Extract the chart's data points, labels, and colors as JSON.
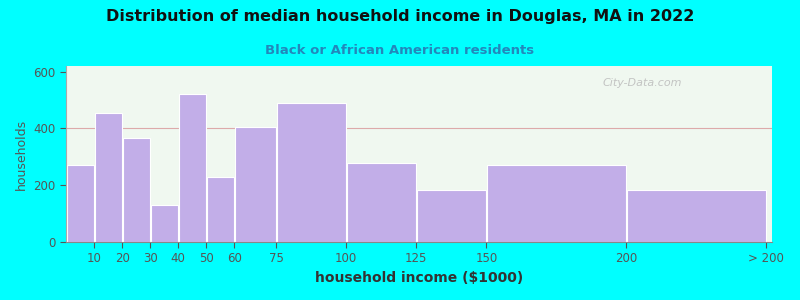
{
  "title": "Distribution of median household income in Douglas, MA in 2022",
  "subtitle": "Black or African American residents",
  "xlabel": "household income ($1000)",
  "ylabel": "households",
  "bar_color": "#c2aee8",
  "background_color": "#00ffff",
  "plot_bg_color": "#f0f8f0",
  "watermark": "City-Data.com",
  "ylim": [
    0,
    620
  ],
  "yticks": [
    0,
    200,
    400,
    600
  ],
  "bar_left_edges": [
    0,
    10,
    20,
    30,
    40,
    50,
    60,
    75,
    100,
    125,
    150,
    200
  ],
  "bar_widths": [
    10,
    10,
    10,
    10,
    10,
    10,
    15,
    25,
    25,
    25,
    50,
    50
  ],
  "values": [
    270,
    455,
    365,
    130,
    520,
    230,
    405,
    490,
    280,
    185,
    270,
    185
  ],
  "xtick_positions": [
    10,
    20,
    30,
    40,
    50,
    60,
    75,
    100,
    125,
    150,
    200,
    250
  ],
  "xtick_labels": [
    "10",
    "20",
    "30",
    "40",
    "50",
    "60",
    "75",
    "100",
    "125",
    "150",
    "200",
    "> 200"
  ]
}
